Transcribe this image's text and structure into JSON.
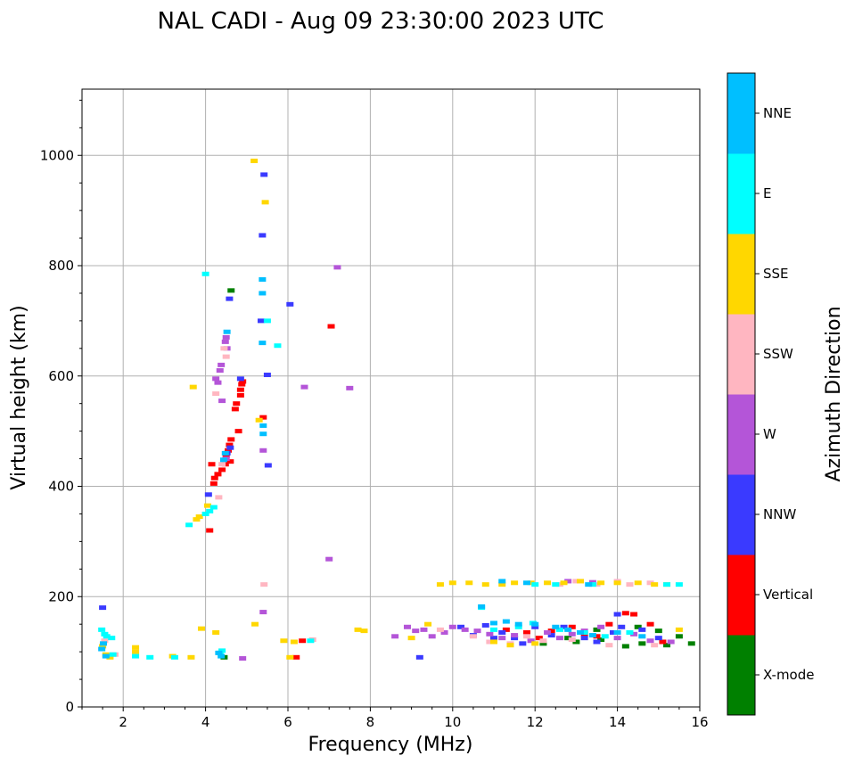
{
  "chart_data": {
    "type": "scatter",
    "title": "NAL CADI - Aug 09 23:30:00 2023 UTC",
    "xlabel": "Frequency (MHz)",
    "ylabel": "Virtual height (km)",
    "xlim": [
      1,
      16
    ],
    "ylim": [
      0,
      1120
    ],
    "x_ticks": [
      2,
      4,
      6,
      8,
      10,
      12,
      14,
      16
    ],
    "y_ticks": [
      0,
      200,
      400,
      600,
      800,
      1000
    ],
    "grid": true,
    "colorbar": {
      "label": "Azimuth Direction",
      "categories": [
        {
          "name": "X-mode",
          "color": "#008000"
        },
        {
          "name": "Vertical",
          "color": "#ff0000"
        },
        {
          "name": "NNW",
          "color": "#3a3aff"
        },
        {
          "name": "W",
          "color": "#b455d8"
        },
        {
          "name": "SSW",
          "color": "#ffb6c1"
        },
        {
          "name": "SSE",
          "color": "#ffd700"
        },
        {
          "name": "E",
          "color": "#00ffff"
        },
        {
          "name": "NNE",
          "color": "#00bfff"
        }
      ]
    },
    "series": [
      {
        "name": "X-mode",
        "points": [
          [
            4.62,
            755
          ],
          [
            4.45,
            90
          ],
          [
            13.5,
            140
          ],
          [
            14.5,
            145
          ],
          [
            15.0,
            138
          ],
          [
            15.5,
            128
          ],
          [
            15.8,
            115
          ],
          [
            14.2,
            110
          ],
          [
            13.0,
            118
          ],
          [
            12.8,
            125
          ],
          [
            13.6,
            122
          ],
          [
            14.6,
            115
          ],
          [
            12.2,
            115
          ],
          [
            15.2,
            112
          ]
        ]
      },
      {
        "name": "Vertical",
        "points": [
          [
            4.1,
            320
          ],
          [
            4.2,
            405
          ],
          [
            4.22,
            415
          ],
          [
            4.3,
            422
          ],
          [
            4.4,
            430
          ],
          [
            4.48,
            440
          ],
          [
            4.5,
            455
          ],
          [
            4.55,
            465
          ],
          [
            4.58,
            475
          ],
          [
            4.62,
            485
          ],
          [
            4.6,
            445
          ],
          [
            4.8,
            500
          ],
          [
            4.72,
            540
          ],
          [
            4.75,
            550
          ],
          [
            4.85,
            565
          ],
          [
            4.85,
            575
          ],
          [
            4.88,
            585
          ],
          [
            4.9,
            590
          ],
          [
            5.4,
            525
          ],
          [
            6.2,
            90
          ],
          [
            6.35,
            120
          ],
          [
            7.05,
            690
          ],
          [
            11.3,
            140
          ],
          [
            11.8,
            135
          ],
          [
            12.1,
            125
          ],
          [
            12.4,
            138
          ],
          [
            12.9,
            145
          ],
          [
            13.2,
            132
          ],
          [
            13.5,
            128
          ],
          [
            13.8,
            150
          ],
          [
            14.2,
            170
          ],
          [
            14.4,
            168
          ],
          [
            14.8,
            150
          ],
          [
            15.1,
            118
          ],
          [
            4.15,
            440
          ]
        ]
      },
      {
        "name": "NNW",
        "points": [
          [
            1.5,
            180
          ],
          [
            4.58,
            740
          ],
          [
            4.85,
            595
          ],
          [
            5.42,
            965
          ],
          [
            5.38,
            855
          ],
          [
            5.35,
            700
          ],
          [
            5.5,
            602
          ],
          [
            6.05,
            730
          ],
          [
            4.6,
            470
          ],
          [
            4.52,
            460
          ],
          [
            4.07,
            385
          ],
          [
            5.52,
            438
          ],
          [
            9.2,
            90
          ],
          [
            10.5,
            130
          ],
          [
            10.8,
            148
          ],
          [
            11.2,
            135
          ],
          [
            11.5,
            125
          ],
          [
            11.7,
            115
          ],
          [
            12.0,
            145
          ],
          [
            12.4,
            130
          ],
          [
            12.7,
            145
          ],
          [
            13.2,
            125
          ],
          [
            13.5,
            118
          ],
          [
            13.9,
            135
          ],
          [
            14.1,
            145
          ],
          [
            14.0,
            168
          ],
          [
            14.6,
            140
          ],
          [
            15.0,
            125
          ],
          [
            11.0,
            125
          ],
          [
            10.2,
            145
          ]
        ]
      },
      {
        "name": "W",
        "points": [
          [
            4.5,
            670
          ],
          [
            4.48,
            662
          ],
          [
            4.52,
            650
          ],
          [
            4.38,
            620
          ],
          [
            4.35,
            610
          ],
          [
            4.25,
            595
          ],
          [
            4.3,
            588
          ],
          [
            4.4,
            555
          ],
          [
            4.5,
            450
          ],
          [
            5.4,
            465
          ],
          [
            6.4,
            580
          ],
          [
            7.2,
            797
          ],
          [
            7.5,
            578
          ],
          [
            7.0,
            268
          ],
          [
            5.4,
            172
          ],
          [
            4.9,
            88
          ],
          [
            8.6,
            128
          ],
          [
            8.9,
            145
          ],
          [
            9.1,
            138
          ],
          [
            9.3,
            140
          ],
          [
            9.5,
            128
          ],
          [
            9.8,
            135
          ],
          [
            10.0,
            145
          ],
          [
            10.3,
            140
          ],
          [
            10.6,
            138
          ],
          [
            10.9,
            132
          ],
          [
            11.2,
            125
          ],
          [
            11.5,
            130
          ],
          [
            11.9,
            120
          ],
          [
            12.3,
            135
          ],
          [
            12.6,
            125
          ],
          [
            12.9,
            132
          ],
          [
            13.2,
            138
          ],
          [
            13.6,
            145
          ],
          [
            14.0,
            125
          ],
          [
            14.4,
            132
          ],
          [
            14.8,
            120
          ],
          [
            15.3,
            118
          ],
          [
            12.8,
            228
          ],
          [
            13.4,
            226
          ]
        ]
      },
      {
        "name": "SSW",
        "points": [
          [
            4.32,
            380
          ],
          [
            4.5,
            635
          ],
          [
            4.45,
            650
          ],
          [
            4.25,
            568
          ],
          [
            4.4,
            440
          ],
          [
            1.55,
            120
          ],
          [
            1.8,
            95
          ],
          [
            5.42,
            222
          ],
          [
            6.6,
            122
          ],
          [
            9.7,
            140
          ],
          [
            10.5,
            128
          ],
          [
            10.9,
            118
          ],
          [
            11.4,
            115
          ],
          [
            11.8,
            128
          ],
          [
            12.2,
            120
          ],
          [
            12.6,
            222
          ],
          [
            13.0,
            228
          ],
          [
            13.5,
            222
          ],
          [
            14.0,
            228
          ],
          [
            14.3,
            222
          ],
          [
            14.8,
            225
          ],
          [
            12.9,
            122
          ],
          [
            13.8,
            112
          ],
          [
            14.9,
            112
          ]
        ]
      },
      {
        "name": "SSE",
        "points": [
          [
            5.18,
            990
          ],
          [
            5.45,
            915
          ],
          [
            3.7,
            580
          ],
          [
            3.78,
            340
          ],
          [
            3.85,
            345
          ],
          [
            4.05,
            365
          ],
          [
            5.3,
            520
          ],
          [
            5.2,
            150
          ],
          [
            4.25,
            135
          ],
          [
            3.9,
            142
          ],
          [
            3.65,
            90
          ],
          [
            3.2,
            92
          ],
          [
            2.3,
            100
          ],
          [
            2.3,
            108
          ],
          [
            1.5,
            110
          ],
          [
            1.58,
            95
          ],
          [
            1.68,
            90
          ],
          [
            5.9,
            120
          ],
          [
            6.05,
            90
          ],
          [
            6.15,
            118
          ],
          [
            7.7,
            140
          ],
          [
            7.85,
            138
          ],
          [
            9.0,
            125
          ],
          [
            9.4,
            150
          ],
          [
            9.7,
            222
          ],
          [
            10.0,
            225
          ],
          [
            10.4,
            225
          ],
          [
            10.8,
            222
          ],
          [
            11.2,
            222
          ],
          [
            11.5,
            225
          ],
          [
            11.9,
            225
          ],
          [
            12.3,
            225
          ],
          [
            12.7,
            225
          ],
          [
            13.1,
            228
          ],
          [
            13.6,
            225
          ],
          [
            14.0,
            225
          ],
          [
            14.5,
            225
          ],
          [
            14.9,
            222
          ],
          [
            15.2,
            222
          ],
          [
            11.0,
            118
          ],
          [
            11.4,
            112
          ],
          [
            12.0,
            115
          ],
          [
            15.5,
            140
          ]
        ]
      },
      {
        "name": "E",
        "points": [
          [
            4.0,
            785
          ],
          [
            4.1,
            355
          ],
          [
            4.2,
            362
          ],
          [
            3.6,
            330
          ],
          [
            4.0,
            350
          ],
          [
            4.35,
            98
          ],
          [
            4.4,
            102
          ],
          [
            1.48,
            140
          ],
          [
            1.55,
            132
          ],
          [
            1.6,
            128
          ],
          [
            1.72,
            125
          ],
          [
            1.75,
            95
          ],
          [
            2.3,
            92
          ],
          [
            2.65,
            90
          ],
          [
            3.25,
            90
          ],
          [
            5.5,
            700
          ],
          [
            5.75,
            655
          ],
          [
            6.55,
            120
          ],
          [
            10.7,
            180
          ],
          [
            11.0,
            140
          ],
          [
            11.6,
            145
          ],
          [
            11.95,
            152
          ],
          [
            12.6,
            140
          ],
          [
            13.2,
            135
          ],
          [
            13.7,
            128
          ],
          [
            14.3,
            135
          ],
          [
            15.5,
            222
          ],
          [
            15.2,
            222
          ],
          [
            12.0,
            222
          ],
          [
            12.5,
            222
          ],
          [
            13.4,
            222
          ]
        ]
      },
      {
        "name": "NNE",
        "points": [
          [
            5.38,
            775
          ],
          [
            5.38,
            750
          ],
          [
            5.38,
            660
          ],
          [
            5.4,
            510
          ],
          [
            5.4,
            495
          ],
          [
            4.52,
            680
          ],
          [
            4.48,
            460
          ],
          [
            4.44,
            448
          ],
          [
            4.32,
            98
          ],
          [
            4.38,
            92
          ],
          [
            1.52,
            115
          ],
          [
            1.48,
            105
          ],
          [
            1.58,
            92
          ],
          [
            10.7,
            182
          ],
          [
            11.0,
            152
          ],
          [
            11.3,
            155
          ],
          [
            11.6,
            150
          ],
          [
            12.0,
            150
          ],
          [
            12.5,
            145
          ],
          [
            12.8,
            140
          ],
          [
            13.1,
            135
          ],
          [
            13.4,
            130
          ],
          [
            14.0,
            135
          ],
          [
            14.6,
            128
          ],
          [
            11.2,
            228
          ],
          [
            11.8,
            225
          ],
          [
            13.3,
            222
          ]
        ]
      }
    ]
  }
}
